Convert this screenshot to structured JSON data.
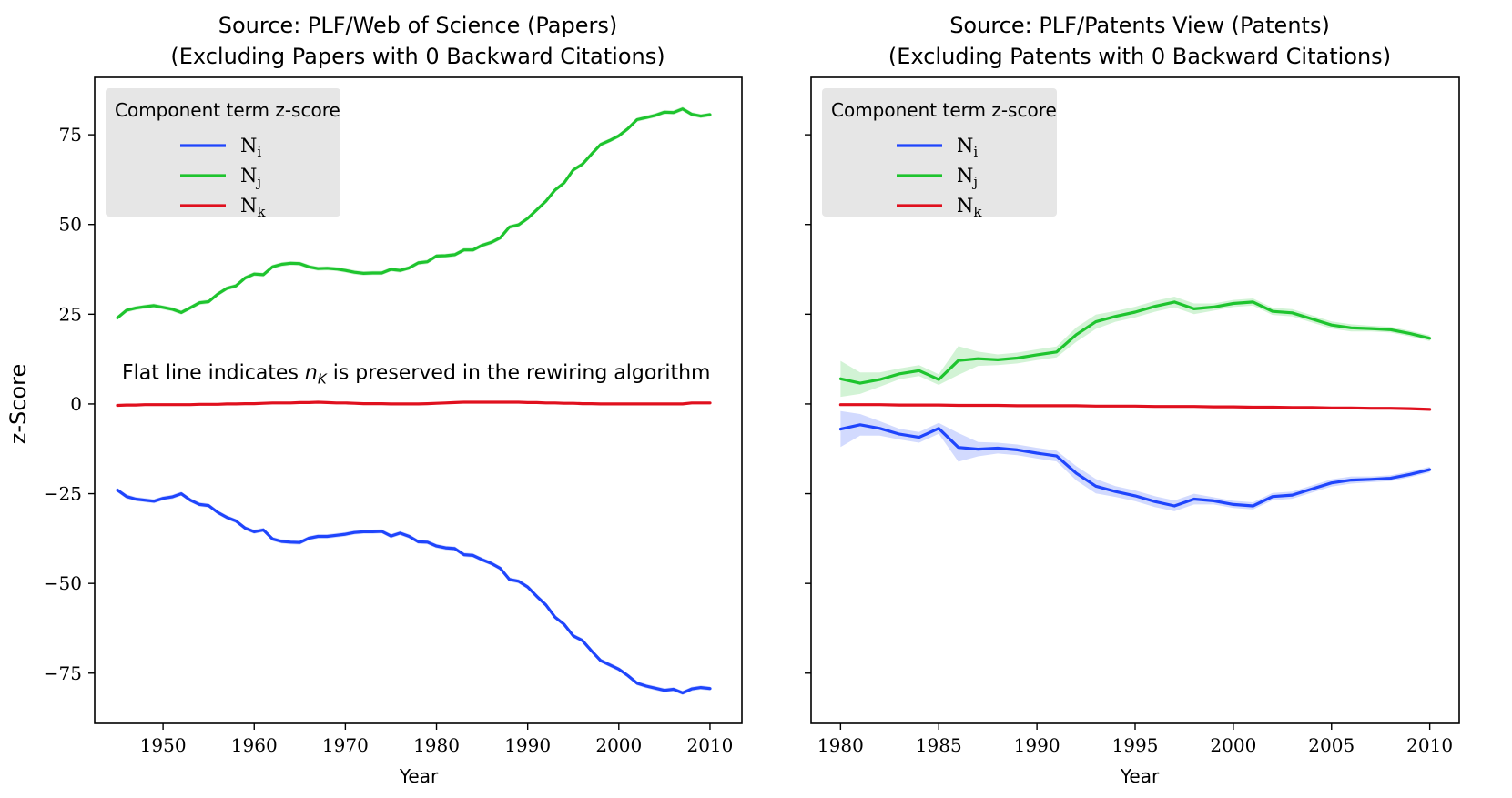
{
  "figure": {
    "ylabel": "z-Score"
  },
  "chart_data": [
    {
      "type": "line",
      "title_line1": "Source: PLF/Web of Science (Papers)",
      "title_line2": "(Excluding Papers with 0 Backward Citations)",
      "xlabel": "Year",
      "ylabel": "z-Score",
      "xlim": [
        1942.5,
        2013.5
      ],
      "ylim": [
        -89,
        91
      ],
      "xticks": [
        1950,
        1960,
        1970,
        1980,
        1990,
        2000,
        2010
      ],
      "yticks": [
        75,
        50,
        25,
        0,
        -25,
        -50,
        -75
      ],
      "ytick_labels": [
        "75",
        "50",
        "25",
        "0",
        "−25",
        "−50",
        "−75"
      ],
      "legend": {
        "title": "Component term z-score",
        "position": "upper-left",
        "entries": [
          {
            "base": "N",
            "sub": "i",
            "color": "#1f45fc"
          },
          {
            "base": "N",
            "sub": "j",
            "color": "#1ec42e"
          },
          {
            "base": "N",
            "sub": "k",
            "color": "#e0101e"
          }
        ]
      },
      "annotation": {
        "text_before": "Flat line indicates ",
        "math_var": "n",
        "math_sub": "K",
        "text_after": " is preserved in the rewiring algorithm",
        "x": 1945.5,
        "y": 7
      },
      "x": [
        1945,
        1946,
        1947,
        1948,
        1949,
        1950,
        1951,
        1952,
        1953,
        1954,
        1955,
        1956,
        1957,
        1958,
        1959,
        1960,
        1961,
        1962,
        1963,
        1964,
        1965,
        1966,
        1967,
        1968,
        1969,
        1970,
        1971,
        1972,
        1973,
        1974,
        1975,
        1976,
        1977,
        1978,
        1979,
        1980,
        1981,
        1982,
        1983,
        1984,
        1985,
        1986,
        1987,
        1988,
        1989,
        1990,
        1991,
        1992,
        1993,
        1994,
        1995,
        1996,
        1997,
        1998,
        1999,
        2000,
        2001,
        2002,
        2003,
        2004,
        2005,
        2006,
        2007,
        2008,
        2009,
        2010
      ],
      "series": [
        {
          "name": "N_i",
          "color": "#1f45fc",
          "band": 0.6,
          "values": [
            -24,
            -25.8,
            -26.5,
            -26.8,
            -27.1,
            -26.3,
            -25.9,
            -25,
            -26.8,
            -28,
            -28.3,
            -30.2,
            -31.6,
            -32.6,
            -34.6,
            -35.6,
            -35.1,
            -37.6,
            -38.3,
            -38.5,
            -38.6,
            -37.4,
            -36.9,
            -36.9,
            -36.6,
            -36.3,
            -35.8,
            -35.6,
            -35.6,
            -35.5,
            -36.8,
            -36,
            -36.9,
            -38.4,
            -38.5,
            -39.6,
            -40.1,
            -40.3,
            -42,
            -42.2,
            -43.4,
            -44.4,
            -45.8,
            -48.9,
            -49.4,
            -51,
            -53.6,
            -56,
            -59.4,
            -61.4,
            -64.6,
            -65.9,
            -68.8,
            -71.5,
            -72.7,
            -73.9,
            -75.7,
            -77.8,
            -78.6,
            -79.2,
            -79.8,
            -79.5,
            -80.5,
            -79.4,
            -79,
            -79.3
          ]
        },
        {
          "name": "N_j",
          "color": "#1ec42e",
          "band": 0.6,
          "values": [
            24,
            26.1,
            26.7,
            27.1,
            27.4,
            26.9,
            26.4,
            25.5,
            26.8,
            28.2,
            28.5,
            30.6,
            32.2,
            32.9,
            35.1,
            36.2,
            36,
            38.2,
            38.9,
            39.2,
            39.1,
            38.2,
            37.7,
            37.8,
            37.6,
            37.2,
            36.7,
            36.4,
            36.5,
            36.5,
            37.5,
            37.2,
            37.9,
            39.3,
            39.6,
            41.2,
            41.3,
            41.6,
            42.9,
            42.9,
            44.2,
            45,
            46.3,
            49.3,
            49.9,
            51.7,
            54.1,
            56.5,
            59.6,
            61.6,
            65.2,
            66.8,
            69.6,
            72.3,
            73.4,
            74.7,
            76.7,
            79.2,
            79.8,
            80.4,
            81.3,
            81.2,
            82.2,
            80.7,
            80.2,
            80.6
          ]
        },
        {
          "name": "N_k",
          "color": "#e0101e",
          "band": 0,
          "values": [
            -0.4,
            -0.3,
            -0.3,
            -0.2,
            -0.2,
            -0.2,
            -0.2,
            -0.2,
            -0.2,
            -0.1,
            -0.1,
            -0.1,
            0,
            0,
            0.1,
            0.1,
            0.2,
            0.3,
            0.3,
            0.3,
            0.4,
            0.4,
            0.5,
            0.4,
            0.3,
            0.3,
            0.2,
            0.1,
            0.1,
            0.1,
            0,
            0,
            0,
            0,
            0.1,
            0.2,
            0.3,
            0.4,
            0.5,
            0.5,
            0.5,
            0.5,
            0.5,
            0.5,
            0.5,
            0.4,
            0.4,
            0.3,
            0.3,
            0.2,
            0.2,
            0.1,
            0.1,
            0,
            0,
            0,
            0,
            0,
            0,
            0,
            0,
            0,
            0,
            0.3,
            0.3,
            0.3
          ]
        }
      ]
    },
    {
      "type": "line",
      "title_line1": "Source: PLF/Patents View (Patents)",
      "title_line2": "(Excluding Patents with 0 Backward Citations)",
      "xlabel": "Year",
      "ylabel": "",
      "xlim": [
        1978.5,
        2011.5
      ],
      "ylim": [
        -89,
        91
      ],
      "xticks": [
        1980,
        1985,
        1990,
        1995,
        2000,
        2005,
        2010
      ],
      "yticks": [
        75,
        50,
        25,
        0,
        -25,
        -50,
        -75
      ],
      "ytick_labels": [],
      "legend": {
        "title": "Component term z-score",
        "position": "upper-left",
        "entries": [
          {
            "base": "N",
            "sub": "i",
            "color": "#1f45fc"
          },
          {
            "base": "N",
            "sub": "j",
            "color": "#1ec42e"
          },
          {
            "base": "N",
            "sub": "k",
            "color": "#e0101e"
          }
        ]
      },
      "x": [
        1980,
        1981,
        1982,
        1983,
        1984,
        1985,
        1986,
        1987,
        1988,
        1989,
        1990,
        1991,
        1992,
        1993,
        1994,
        1995,
        1996,
        1997,
        1998,
        1999,
        2000,
        2001,
        2002,
        2003,
        2004,
        2005,
        2006,
        2007,
        2008,
        2009,
        2010
      ],
      "series": [
        {
          "name": "N_i",
          "color": "#1f45fc",
          "bands": [
            5,
            3,
            2,
            1.5,
            1.5,
            1.5,
            4,
            2,
            1.5,
            1.5,
            1.5,
            1.5,
            2,
            2,
            1.5,
            1.5,
            1.5,
            1.5,
            1.5,
            1,
            1,
            1,
            1,
            1,
            1,
            1,
            1,
            0.8,
            0.8,
            0.8,
            0.8
          ],
          "values": [
            -7,
            -5.8,
            -6.8,
            -8.4,
            -9.3,
            -6.8,
            -12.1,
            -12.6,
            -12.3,
            -12.8,
            -13.7,
            -14.5,
            -19.3,
            -22.9,
            -24.4,
            -25.6,
            -27.2,
            -28.4,
            -26.5,
            -27,
            -28,
            -28.4,
            -25.8,
            -25.4,
            -23.7,
            -22,
            -21.2,
            -21,
            -20.7,
            -19.6,
            -18.3
          ]
        },
        {
          "name": "N_j",
          "color": "#1ec42e",
          "bands": [
            5,
            3,
            2,
            1.5,
            1.5,
            1.5,
            4,
            2,
            1.5,
            1.5,
            1.5,
            1.5,
            2,
            2,
            1.5,
            1.5,
            1.5,
            1.5,
            1.5,
            1,
            1,
            1,
            1,
            1,
            1,
            1,
            1,
            0.8,
            0.8,
            0.8,
            0.8
          ],
          "values": [
            7,
            5.8,
            6.8,
            8.4,
            9.3,
            6.8,
            12.1,
            12.6,
            12.3,
            12.8,
            13.7,
            14.5,
            19.3,
            22.9,
            24.4,
            25.6,
            27.2,
            28.4,
            26.5,
            27,
            28,
            28.4,
            25.8,
            25.4,
            23.7,
            22,
            21.2,
            21,
            20.7,
            19.6,
            18.3
          ]
        },
        {
          "name": "N_k",
          "color": "#e0101e",
          "bands": [],
          "values": [
            -0.2,
            -0.2,
            -0.2,
            -0.3,
            -0.3,
            -0.3,
            -0.4,
            -0.4,
            -0.4,
            -0.5,
            -0.5,
            -0.5,
            -0.5,
            -0.6,
            -0.6,
            -0.6,
            -0.7,
            -0.7,
            -0.7,
            -0.8,
            -0.8,
            -0.9,
            -0.9,
            -1,
            -1,
            -1.1,
            -1.1,
            -1.2,
            -1.2,
            -1.3,
            -1.5
          ]
        }
      ]
    }
  ]
}
